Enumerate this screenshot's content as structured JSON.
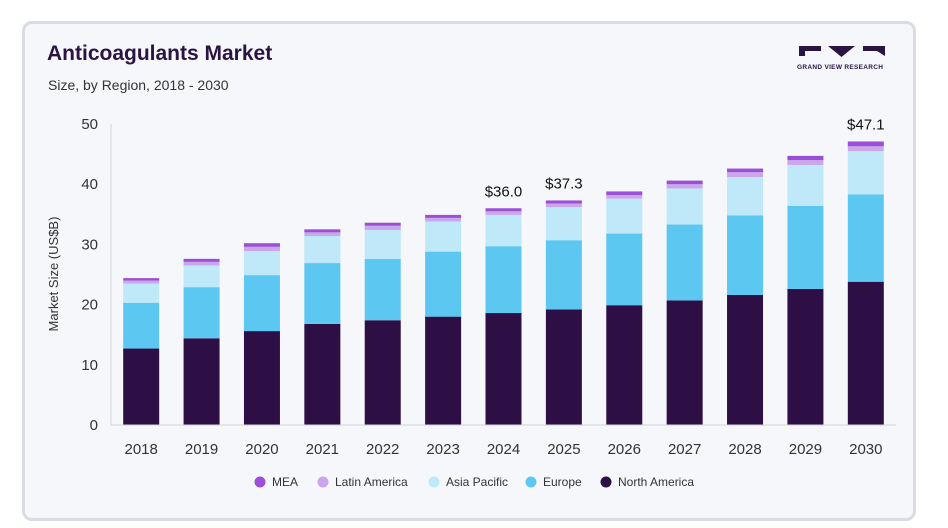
{
  "header": {
    "title": "Anticoagulants Market",
    "subtitle": "Size, by Region, 2018 - 2030"
  },
  "logo": {
    "text": "GRAND VIEW RESEARCH",
    "color": "#2b1342",
    "accent": "#7c5cc4"
  },
  "chart_data": {
    "type": "bar",
    "stacked": true,
    "title": "Anticoagulants Market",
    "subtitle": "Size, by Region, 2018 - 2030",
    "xlabel": "",
    "ylabel": "Market Size (US$B)",
    "ylim": [
      0,
      50
    ],
    "yticks": [
      0,
      10,
      20,
      30,
      40,
      50
    ],
    "grid": false,
    "legend_position": "bottom",
    "categories": [
      "2018",
      "2019",
      "2020",
      "2021",
      "2022",
      "2023",
      "2024",
      "2025",
      "2026",
      "2027",
      "2028",
      "2029",
      "2030"
    ],
    "series": [
      {
        "name": "North America",
        "color": "#2e0f45",
        "values": [
          12.7,
          14.4,
          15.6,
          16.8,
          17.4,
          18.0,
          18.6,
          19.2,
          19.9,
          20.7,
          21.6,
          22.6,
          23.8
        ]
      },
      {
        "name": "Europe",
        "color": "#5cc8f1",
        "values": [
          7.6,
          8.5,
          9.3,
          10.1,
          10.2,
          10.8,
          11.1,
          11.5,
          11.9,
          12.6,
          13.2,
          13.8,
          14.5
        ]
      },
      {
        "name": "Asia Pacific",
        "color": "#bfe8f8",
        "values": [
          3.2,
          3.6,
          4.0,
          4.5,
          4.8,
          5.0,
          5.2,
          5.5,
          5.8,
          6.0,
          6.4,
          6.8,
          7.2
        ]
      },
      {
        "name": "Latin America",
        "color": "#caa6ea",
        "values": [
          0.5,
          0.6,
          0.7,
          0.6,
          0.7,
          0.6,
          0.6,
          0.6,
          0.6,
          0.7,
          0.8,
          0.8,
          0.8
        ]
      },
      {
        "name": "MEA",
        "color": "#9b4fd6",
        "values": [
          0.4,
          0.5,
          0.6,
          0.5,
          0.5,
          0.5,
          0.5,
          0.5,
          0.6,
          0.6,
          0.6,
          0.7,
          0.8
        ]
      }
    ],
    "legend_order": [
      "MEA",
      "Latin America",
      "Asia Pacific",
      "Europe",
      "North America"
    ],
    "annotations": [
      {
        "category": "2024",
        "label": "$36.0"
      },
      {
        "category": "2025",
        "label": "$37.3"
      },
      {
        "category": "2030",
        "label": "$47.1"
      }
    ]
  }
}
